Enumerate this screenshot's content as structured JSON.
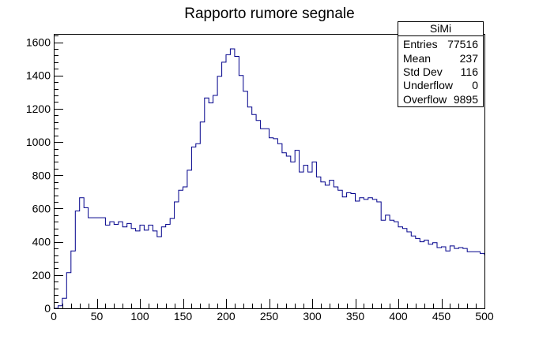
{
  "chart_data": {
    "type": "histogram",
    "title": "Rapporto rumore segnale",
    "xlabel": "",
    "ylabel": "",
    "xlim": [
      0,
      500
    ],
    "ylim": [
      0,
      1650
    ],
    "bin_width": 5,
    "x_ticks": [
      0,
      50,
      100,
      150,
      200,
      250,
      300,
      350,
      400,
      450,
      500
    ],
    "y_ticks": [
      0,
      200,
      400,
      600,
      800,
      1000,
      1200,
      1400,
      1600
    ],
    "series": [
      {
        "color": "#00008b",
        "values": [
          0,
          15,
          60,
          215,
          345,
          585,
          665,
          605,
          545,
          545,
          545,
          545,
          500,
          520,
          505,
          520,
          490,
          510,
          480,
          465,
          500,
          470,
          500,
          465,
          430,
          490,
          505,
          540,
          640,
          710,
          730,
          830,
          970,
          990,
          1120,
          1265,
          1235,
          1280,
          1395,
          1480,
          1525,
          1560,
          1515,
          1400,
          1305,
          1210,
          1165,
          1130,
          1080,
          1080,
          1025,
          1020,
          990,
          935,
          915,
          880,
          950,
          820,
          860,
          820,
          880,
          790,
          760,
          740,
          770,
          730,
          710,
          670,
          695,
          690,
          645,
          665,
          655,
          665,
          655,
          640,
          530,
          560,
          530,
          520,
          490,
          480,
          460,
          435,
          420,
          400,
          410,
          385,
          395,
          365,
          370,
          345,
          375,
          360,
          365,
          360,
          340,
          340,
          340,
          330,
          320
        ]
      }
    ],
    "stats_box": {
      "title": "SiMi",
      "rows": [
        {
          "label": "Entries",
          "value": "77516"
        },
        {
          "label": "Mean",
          "value": "237"
        },
        {
          "label": "Std Dev",
          "value": "116"
        },
        {
          "label": "Underflow",
          "value": "0"
        },
        {
          "label": "Overflow",
          "value": "9895"
        }
      ]
    }
  }
}
